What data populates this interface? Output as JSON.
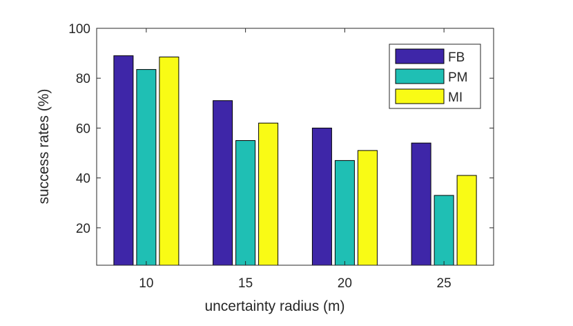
{
  "chart_data": {
    "type": "bar",
    "title": "",
    "xlabel": "uncertainty radius (m)",
    "ylabel": "success rates (%)",
    "categories": [
      "10",
      "15",
      "20",
      "25"
    ],
    "series": [
      {
        "name": "FB",
        "color": "#3e26a8",
        "values": [
          89,
          71,
          60,
          54
        ]
      },
      {
        "name": "PM",
        "color": "#1fbfb4",
        "values": [
          83.5,
          55,
          47,
          33
        ]
      },
      {
        "name": "MI",
        "color": "#f9fb15",
        "values": [
          88.5,
          62,
          51,
          41
        ]
      }
    ],
    "ylim": [
      5,
      100
    ],
    "yticks": [
      20,
      40,
      60,
      80,
      100
    ],
    "legend_position": "top-right",
    "grid": false
  }
}
